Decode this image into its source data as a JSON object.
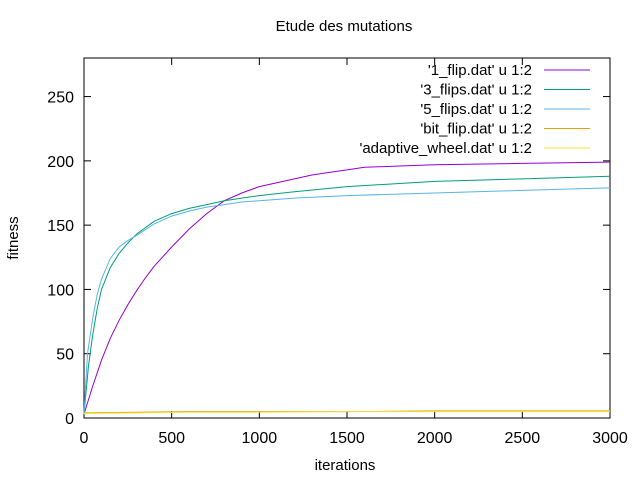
{
  "chart_data": {
    "type": "line",
    "title": "Etude des mutations",
    "xlabel": "iterations",
    "ylabel": "fitness",
    "xlim": [
      0,
      3000
    ],
    "ylim": [
      0,
      280
    ],
    "xticks": [
      0,
      500,
      1000,
      1500,
      2000,
      2500,
      3000
    ],
    "yticks": [
      0,
      50,
      100,
      150,
      200,
      250
    ],
    "grid": false,
    "legend_position": "top-right",
    "series": [
      {
        "name": "'1_flip.dat' u 1:2",
        "color": "#9400d3",
        "x": [
          0,
          50,
          100,
          150,
          200,
          250,
          300,
          350,
          400,
          500,
          600,
          700,
          800,
          900,
          1000,
          1100,
          1200,
          1300,
          1400,
          1500,
          1600,
          1800,
          2000,
          2500,
          3000
        ],
        "y": [
          3,
          25,
          45,
          62,
          76,
          88,
          99,
          109,
          118,
          133,
          147,
          159,
          169,
          175,
          180,
          183,
          186,
          189,
          191,
          193,
          195,
          196,
          197,
          198,
          199
        ]
      },
      {
        "name": "'3_flips.dat' u 1:2",
        "color": "#009e73",
        "x": [
          0,
          25,
          50,
          75,
          100,
          150,
          200,
          250,
          300,
          400,
          500,
          600,
          700,
          800,
          900,
          1000,
          1200,
          1500,
          2000,
          2500,
          3000
        ],
        "y": [
          3,
          40,
          65,
          85,
          100,
          117,
          128,
          136,
          143,
          153,
          159,
          163,
          166,
          169,
          171,
          173,
          176,
          180,
          184,
          186,
          188
        ]
      },
      {
        "name": "'5_flips.dat' u 1:2",
        "color": "#56b4e9",
        "x": [
          0,
          20,
          50,
          75,
          100,
          150,
          200,
          250,
          300,
          400,
          500,
          600,
          700,
          800,
          900,
          1000,
          1200,
          1500,
          2000,
          2500,
          3000
        ],
        "y": [
          3,
          50,
          78,
          96,
          108,
          124,
          133,
          138,
          142,
          151,
          157,
          161,
          164,
          166,
          168,
          169,
          171,
          173,
          175,
          177,
          179
        ]
      },
      {
        "name": "'bit_flip.dat' u 1:2",
        "color": "#e69f00",
        "x": [
          0,
          300,
          600,
          1000,
          1500,
          2000,
          2500,
          3000
        ],
        "y": [
          4,
          4.5,
          5,
          5,
          5,
          5.5,
          5.5,
          5.5
        ]
      },
      {
        "name": "'adaptive_wheel.dat' u 1:2",
        "color": "#f0e442",
        "x": [
          0,
          300,
          600,
          1000,
          1500,
          2000,
          2500,
          3000
        ],
        "y": [
          3.5,
          4,
          4.5,
          4.5,
          5,
          5,
          5,
          5
        ]
      }
    ]
  }
}
